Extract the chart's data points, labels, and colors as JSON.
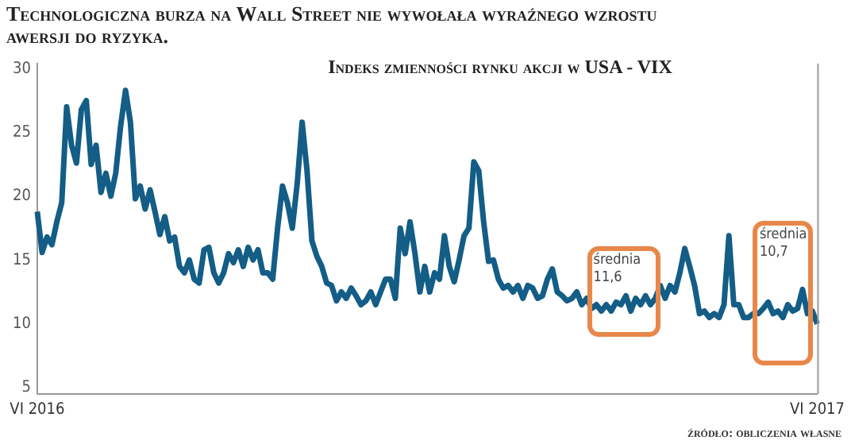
{
  "chart_data": {
    "type": "line",
    "title": "Technologiczna burza na Wall Street nie wywołała wyraźnego wzrostu awersji do ryzyka.",
    "subtitle": "Indeks zmienności rynku akcji w USA - VIX",
    "categories": [
      "VI 2016",
      null,
      null,
      null,
      null,
      null,
      null,
      null,
      null,
      null,
      null,
      null,
      null,
      null,
      null,
      null,
      null,
      null,
      null,
      null,
      null,
      null,
      null,
      null,
      null,
      null,
      null,
      null,
      null,
      null,
      null,
      null,
      null,
      null,
      null,
      null,
      null,
      null,
      null,
      null,
      null,
      null,
      null,
      null,
      null,
      null,
      null,
      null,
      null,
      null,
      null,
      null,
      null,
      null,
      null,
      null,
      null,
      null,
      null,
      null,
      null,
      null,
      null,
      null,
      null,
      null,
      null,
      null,
      null,
      null,
      null,
      null,
      null,
      null,
      null,
      null,
      null,
      null,
      null,
      null,
      null,
      null,
      null,
      null,
      null,
      null,
      null,
      null,
      null,
      null,
      null,
      null,
      null,
      null,
      null,
      null,
      null,
      null,
      null,
      null,
      null,
      null,
      null,
      null,
      null,
      null,
      null,
      null,
      null,
      null,
      null,
      null,
      null,
      null,
      null,
      null,
      null,
      null,
      null,
      null,
      null,
      null,
      null,
      null,
      null,
      null,
      null,
      null,
      null,
      null,
      null,
      null,
      null,
      null,
      null,
      null,
      null,
      null,
      null,
      null,
      null,
      null,
      null,
      null,
      null,
      null,
      null,
      null,
      null,
      null,
      null,
      null,
      null,
      null,
      null,
      null,
      null,
      null,
      null,
      "VI 2017"
    ],
    "series": [
      {
        "color": "#135d86",
        "values": [
          18.8,
          15.6,
          16.8,
          16.2,
          18.0,
          19.5,
          27.0,
          24.0,
          22.6,
          26.8,
          27.5,
          22.5,
          24.0,
          20.3,
          21.8,
          20.0,
          21.8,
          25.5,
          28.3,
          25.8,
          19.8,
          20.8,
          19.0,
          20.5,
          18.8,
          17.0,
          18.4,
          16.5,
          16.8,
          14.5,
          14.0,
          15.0,
          13.5,
          13.2,
          15.8,
          16.0,
          14.0,
          13.2,
          14.0,
          15.5,
          14.8,
          15.8,
          14.5,
          16.0,
          15.0,
          15.8,
          14.0,
          14.0,
          13.5,
          17.5,
          20.8,
          19.5,
          17.5,
          21.0,
          25.8,
          22.0,
          16.5,
          15.3,
          14.5,
          13.2,
          13.0,
          11.8,
          12.5,
          12.0,
          12.8,
          12.2,
          11.5,
          11.8,
          12.5,
          11.5,
          12.5,
          13.5,
          13.5,
          12.0,
          17.5,
          15.5,
          18.0,
          15.5,
          12.5,
          14.5,
          12.5,
          14.0,
          13.5,
          16.9,
          14.5,
          13.3,
          15.0,
          16.9,
          17.5,
          22.7,
          22.0,
          18.0,
          14.9,
          15.0,
          13.5,
          12.8,
          13.0,
          12.5,
          13.0,
          12.0,
          13.0,
          12.8,
          12.0,
          12.2,
          13.5,
          14.3,
          12.5,
          12.2,
          11.8,
          12.0,
          12.5,
          11.5,
          12.0,
          11.2,
          11.5,
          11.0,
          11.5,
          11.0,
          11.7,
          11.5,
          12.2,
          11.0,
          12.0,
          11.5,
          12.2,
          11.5,
          12.0,
          13.0,
          12.0,
          13.0,
          12.5,
          14.0,
          15.9,
          14.5,
          13.0,
          10.8,
          11.0,
          10.5,
          10.8,
          10.5,
          11.5,
          16.9,
          11.5,
          11.5,
          10.5,
          10.5,
          10.8,
          10.8,
          11.2,
          11.7,
          10.8,
          11.0,
          10.5,
          11.5,
          11.0,
          11.2,
          12.7,
          10.8,
          11.0,
          10.0
        ]
      }
    ],
    "ylim": [
      4.5,
      30.4
    ],
    "yticks": [
      5,
      10,
      15,
      20,
      25,
      30
    ],
    "grid": false,
    "legend": false,
    "marker": "none",
    "annotations": [
      "średnia 11,6",
      "średnia 10,7",
      "źródło: obliczenia własne"
    ]
  }
}
